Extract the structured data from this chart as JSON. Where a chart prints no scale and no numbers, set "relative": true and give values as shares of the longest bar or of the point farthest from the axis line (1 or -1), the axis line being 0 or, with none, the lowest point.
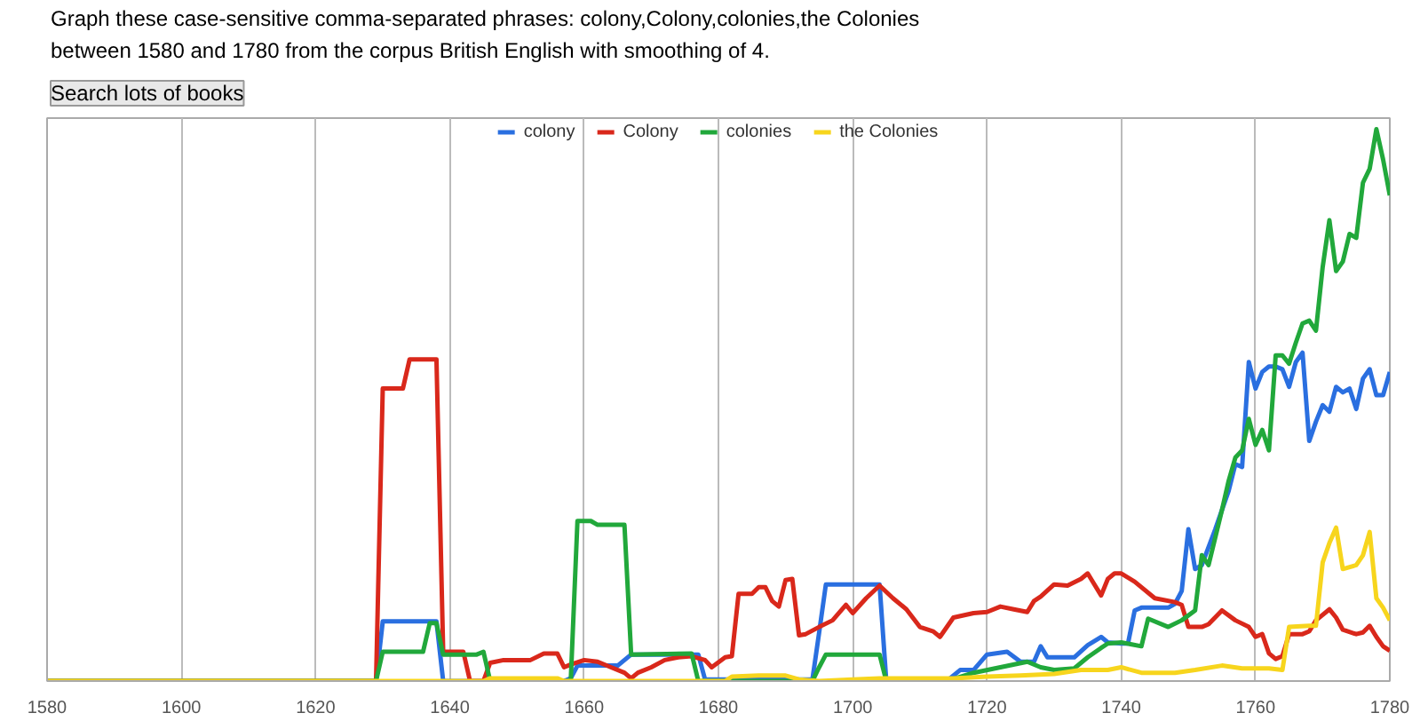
{
  "chart_data": {
    "type": "line",
    "annotations": [
      "Graph these case-sensitive comma-separated phrases: colony,Colony,colonies,the Colonies",
      "between 1580 and 1780 from the corpus British English with smoothing of 4.",
      "Search lots of books"
    ],
    "xlim": [
      1580,
      1780
    ],
    "xticks": [
      1580,
      1600,
      1620,
      1640,
      1660,
      1680,
      1700,
      1720,
      1740,
      1760,
      1780
    ],
    "relative": true,
    "grid": "x",
    "legend": "top",
    "line_style": "solid",
    "series": [
      {
        "name": "colony",
        "color": "#2a6fe0",
        "x": [
          1580,
          1629,
          1630,
          1638,
          1639,
          1657,
          1658,
          1659,
          1665,
          1667,
          1668,
          1677,
          1678,
          1694,
          1695,
          1696,
          1704,
          1705,
          1714,
          1716,
          1718,
          1720,
          1723,
          1725,
          1727,
          1728,
          1729,
          1731,
          1733,
          1735,
          1737,
          1738,
          1740,
          1741,
          1742,
          1743,
          1747,
          1748,
          1749,
          1750,
          1751,
          1752,
          1754,
          1756,
          1757,
          1758,
          1759,
          1760,
          1761,
          1762,
          1763,
          1764,
          1765,
          1766,
          1767,
          1768,
          1769,
          1770,
          1771,
          1772,
          1773,
          1774,
          1775,
          1776,
          1777,
          1778,
          1779,
          1780
        ],
        "values": [
          0,
          0,
          0.108,
          0.108,
          0,
          0,
          0.005,
          0.028,
          0.028,
          0.048,
          0.048,
          0.048,
          0.003,
          0.003,
          0.088,
          0.175,
          0.175,
          0,
          0,
          0.02,
          0.02,
          0.048,
          0.053,
          0.035,
          0.035,
          0.063,
          0.043,
          0.043,
          0.043,
          0.065,
          0.08,
          0.07,
          0.068,
          0.068,
          0.128,
          0.133,
          0.133,
          0.14,
          0.163,
          0.275,
          0.203,
          0.21,
          0.275,
          0.345,
          0.393,
          0.388,
          0.578,
          0.53,
          0.56,
          0.57,
          0.57,
          0.565,
          0.533,
          0.578,
          0.595,
          0.435,
          0.47,
          0.5,
          0.488,
          0.533,
          0.523,
          0.53,
          0.493,
          0.548,
          0.565,
          0.518,
          0.518,
          0.56
        ]
      },
      {
        "name": "Colony",
        "color": "#d9281b",
        "x": [
          1580,
          1629,
          1630,
          1633,
          1634,
          1638,
          1639,
          1642,
          1643,
          1645,
          1646,
          1648,
          1652,
          1654,
          1656,
          1657,
          1658,
          1660,
          1662,
          1664,
          1666,
          1667,
          1668,
          1670,
          1672,
          1674,
          1676,
          1678,
          1679,
          1681,
          1682,
          1683,
          1685,
          1686,
          1687,
          1688,
          1689,
          1690,
          1691,
          1692,
          1693,
          1695,
          1697,
          1699,
          1700,
          1702,
          1704,
          1706,
          1708,
          1710,
          1712,
          1713,
          1715,
          1718,
          1720,
          1722,
          1724,
          1726,
          1727,
          1728,
          1730,
          1732,
          1734,
          1735,
          1736,
          1737,
          1738,
          1739,
          1740,
          1742,
          1745,
          1748,
          1749,
          1750,
          1752,
          1753,
          1755,
          1757,
          1759,
          1760,
          1761,
          1762,
          1763,
          1764,
          1765,
          1767,
          1768,
          1769,
          1771,
          1772,
          1773,
          1775,
          1776,
          1777,
          1778,
          1779,
          1780
        ],
        "values": [
          0,
          0,
          0.53,
          0.53,
          0.583,
          0.583,
          0.053,
          0.053,
          0,
          0,
          0.033,
          0.038,
          0.038,
          0.05,
          0.05,
          0.025,
          0.03,
          0.038,
          0.035,
          0.025,
          0.015,
          0.005,
          0.015,
          0.025,
          0.038,
          0.043,
          0.045,
          0.038,
          0.025,
          0.043,
          0.045,
          0.158,
          0.158,
          0.17,
          0.17,
          0.145,
          0.135,
          0.183,
          0.185,
          0.083,
          0.085,
          0.098,
          0.11,
          0.138,
          0.123,
          0.15,
          0.173,
          0.15,
          0.13,
          0.098,
          0.09,
          0.08,
          0.115,
          0.123,
          0.125,
          0.135,
          0.13,
          0.125,
          0.145,
          0.153,
          0.175,
          0.173,
          0.185,
          0.195,
          0.175,
          0.155,
          0.185,
          0.195,
          0.195,
          0.18,
          0.15,
          0.143,
          0.138,
          0.098,
          0.098,
          0.103,
          0.128,
          0.11,
          0.098,
          0.08,
          0.085,
          0.05,
          0.04,
          0.045,
          0.085,
          0.085,
          0.09,
          0.11,
          0.13,
          0.115,
          0.093,
          0.085,
          0.088,
          0.1,
          0.08,
          0.063,
          0.055
        ]
      },
      {
        "name": "colonies",
        "color": "#21a83b",
        "x": [
          1580,
          1629,
          1630,
          1636,
          1637,
          1638,
          1639,
          1644,
          1645,
          1646,
          1658,
          1659,
          1661,
          1662,
          1666,
          1667,
          1676,
          1677,
          1694,
          1695,
          1696,
          1704,
          1705,
          1714,
          1718,
          1722,
          1726,
          1728,
          1730,
          1733,
          1735,
          1737,
          1738,
          1740,
          1743,
          1744,
          1747,
          1749,
          1751,
          1752,
          1753,
          1755,
          1756,
          1757,
          1758,
          1759,
          1760,
          1761,
          1762,
          1763,
          1764,
          1765,
          1766,
          1767,
          1768,
          1769,
          1770,
          1771,
          1772,
          1773,
          1774,
          1775,
          1776,
          1777,
          1778,
          1779,
          1780
        ],
        "values": [
          0,
          0,
          0.053,
          0.053,
          0.105,
          0.105,
          0.048,
          0.048,
          0.053,
          0,
          0,
          0.29,
          0.29,
          0.283,
          0.283,
          0.048,
          0.05,
          0,
          0,
          0.025,
          0.048,
          0.048,
          0,
          0,
          0.015,
          0.025,
          0.035,
          0.025,
          0.02,
          0.023,
          0.043,
          0.06,
          0.068,
          0.07,
          0.063,
          0.113,
          0.098,
          0.11,
          0.128,
          0.228,
          0.21,
          0.31,
          0.363,
          0.405,
          0.418,
          0.475,
          0.428,
          0.455,
          0.418,
          0.59,
          0.59,
          0.575,
          0.613,
          0.648,
          0.653,
          0.635,
          0.75,
          0.835,
          0.743,
          0.76,
          0.81,
          0.803,
          0.903,
          0.928,
          1,
          0.945,
          0.88
        ]
      },
      {
        "name": "the Colonies",
        "color": "#f7d51d",
        "x": [
          1580,
          1645,
          1646,
          1656,
          1657,
          1681,
          1682,
          1686,
          1690,
          1692,
          1695,
          1700,
          1704,
          1710,
          1715,
          1720,
          1725,
          1730,
          1734,
          1738,
          1740,
          1743,
          1745,
          1748,
          1751,
          1755,
          1758,
          1762,
          1764,
          1765,
          1768,
          1769,
          1770,
          1771,
          1772,
          1773,
          1775,
          1776,
          1777,
          1778,
          1779,
          1780
        ],
        "values": [
          0,
          0,
          0.005,
          0.005,
          0,
          0,
          0.008,
          0.01,
          0.01,
          0.003,
          0,
          0.003,
          0.005,
          0.005,
          0.005,
          0.008,
          0.01,
          0.013,
          0.02,
          0.02,
          0.025,
          0.015,
          0.015,
          0.015,
          0.02,
          0.028,
          0.023,
          0.023,
          0.02,
          0.098,
          0.1,
          0.1,
          0.215,
          0.25,
          0.278,
          0.203,
          0.21,
          0.228,
          0.27,
          0.15,
          0.133,
          0.11
        ]
      }
    ]
  }
}
